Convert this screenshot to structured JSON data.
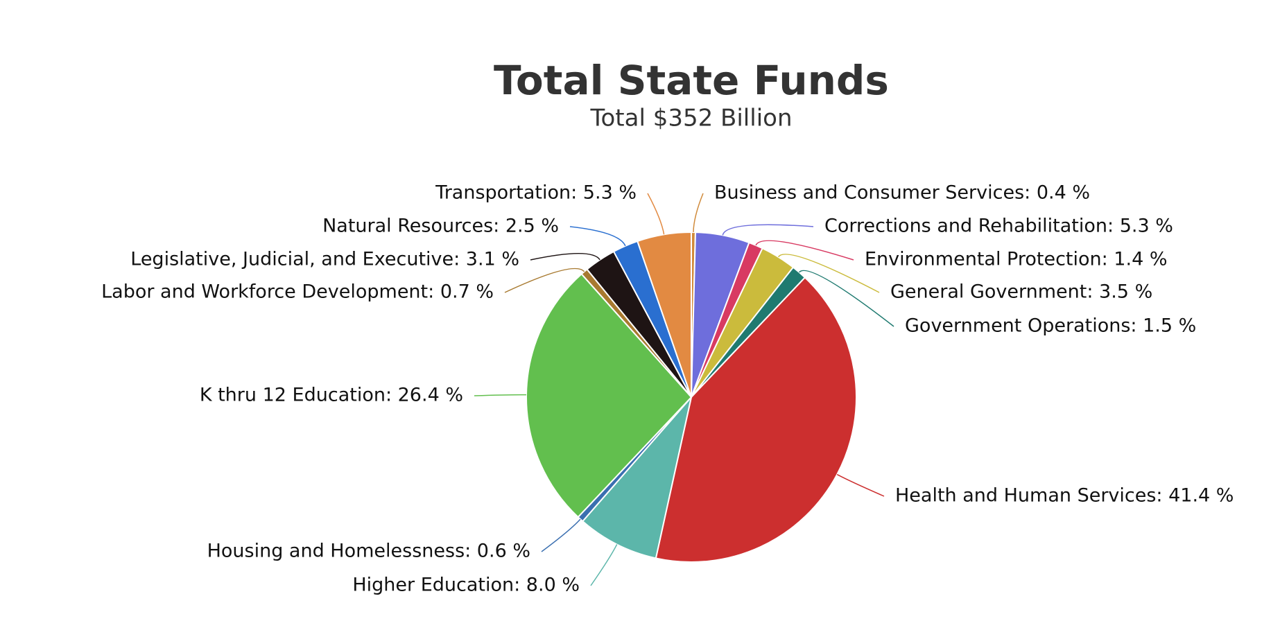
{
  "chart_data": {
    "type": "pie",
    "title": "Total State Funds",
    "subtitle": "Total $352 Billion",
    "values": [
      0.4,
      5.3,
      1.4,
      3.5,
      1.5,
      41.4,
      8.0,
      0.6,
      26.4,
      0.7,
      3.1,
      2.5,
      5.3
    ],
    "value_labels": [
      "Business and Consumer Services: 0.4 %",
      "Corrections and Rehabilitation: 5.3 %",
      "Environmental Protection: 1.4 %",
      "General Government: 3.5 %",
      "Government Operations: 1.5 %",
      "Health and Human Services: 41.4 %",
      "Higher Education: 8.0 %",
      "Housing and Homelessness: 0.6 %",
      "K thru 12 Education: 26.4 %",
      "Labor and Workforce Development: 0.7 %",
      "Legislative, Judicial, and Executive: 3.1 %",
      "Natural Resources: 2.5 %",
      "Transportation: 5.3 %"
    ],
    "colors": [
      "#d08a3a",
      "#6e6edc",
      "#d83a62",
      "#cbbb3c",
      "#1f7a70",
      "#cc2f2f",
      "#5cb6aa",
      "#3a6fb0",
      "#62bf4e",
      "#a87a30",
      "#1e1414",
      "#2a6fd0",
      "#e28a42"
    ]
  }
}
